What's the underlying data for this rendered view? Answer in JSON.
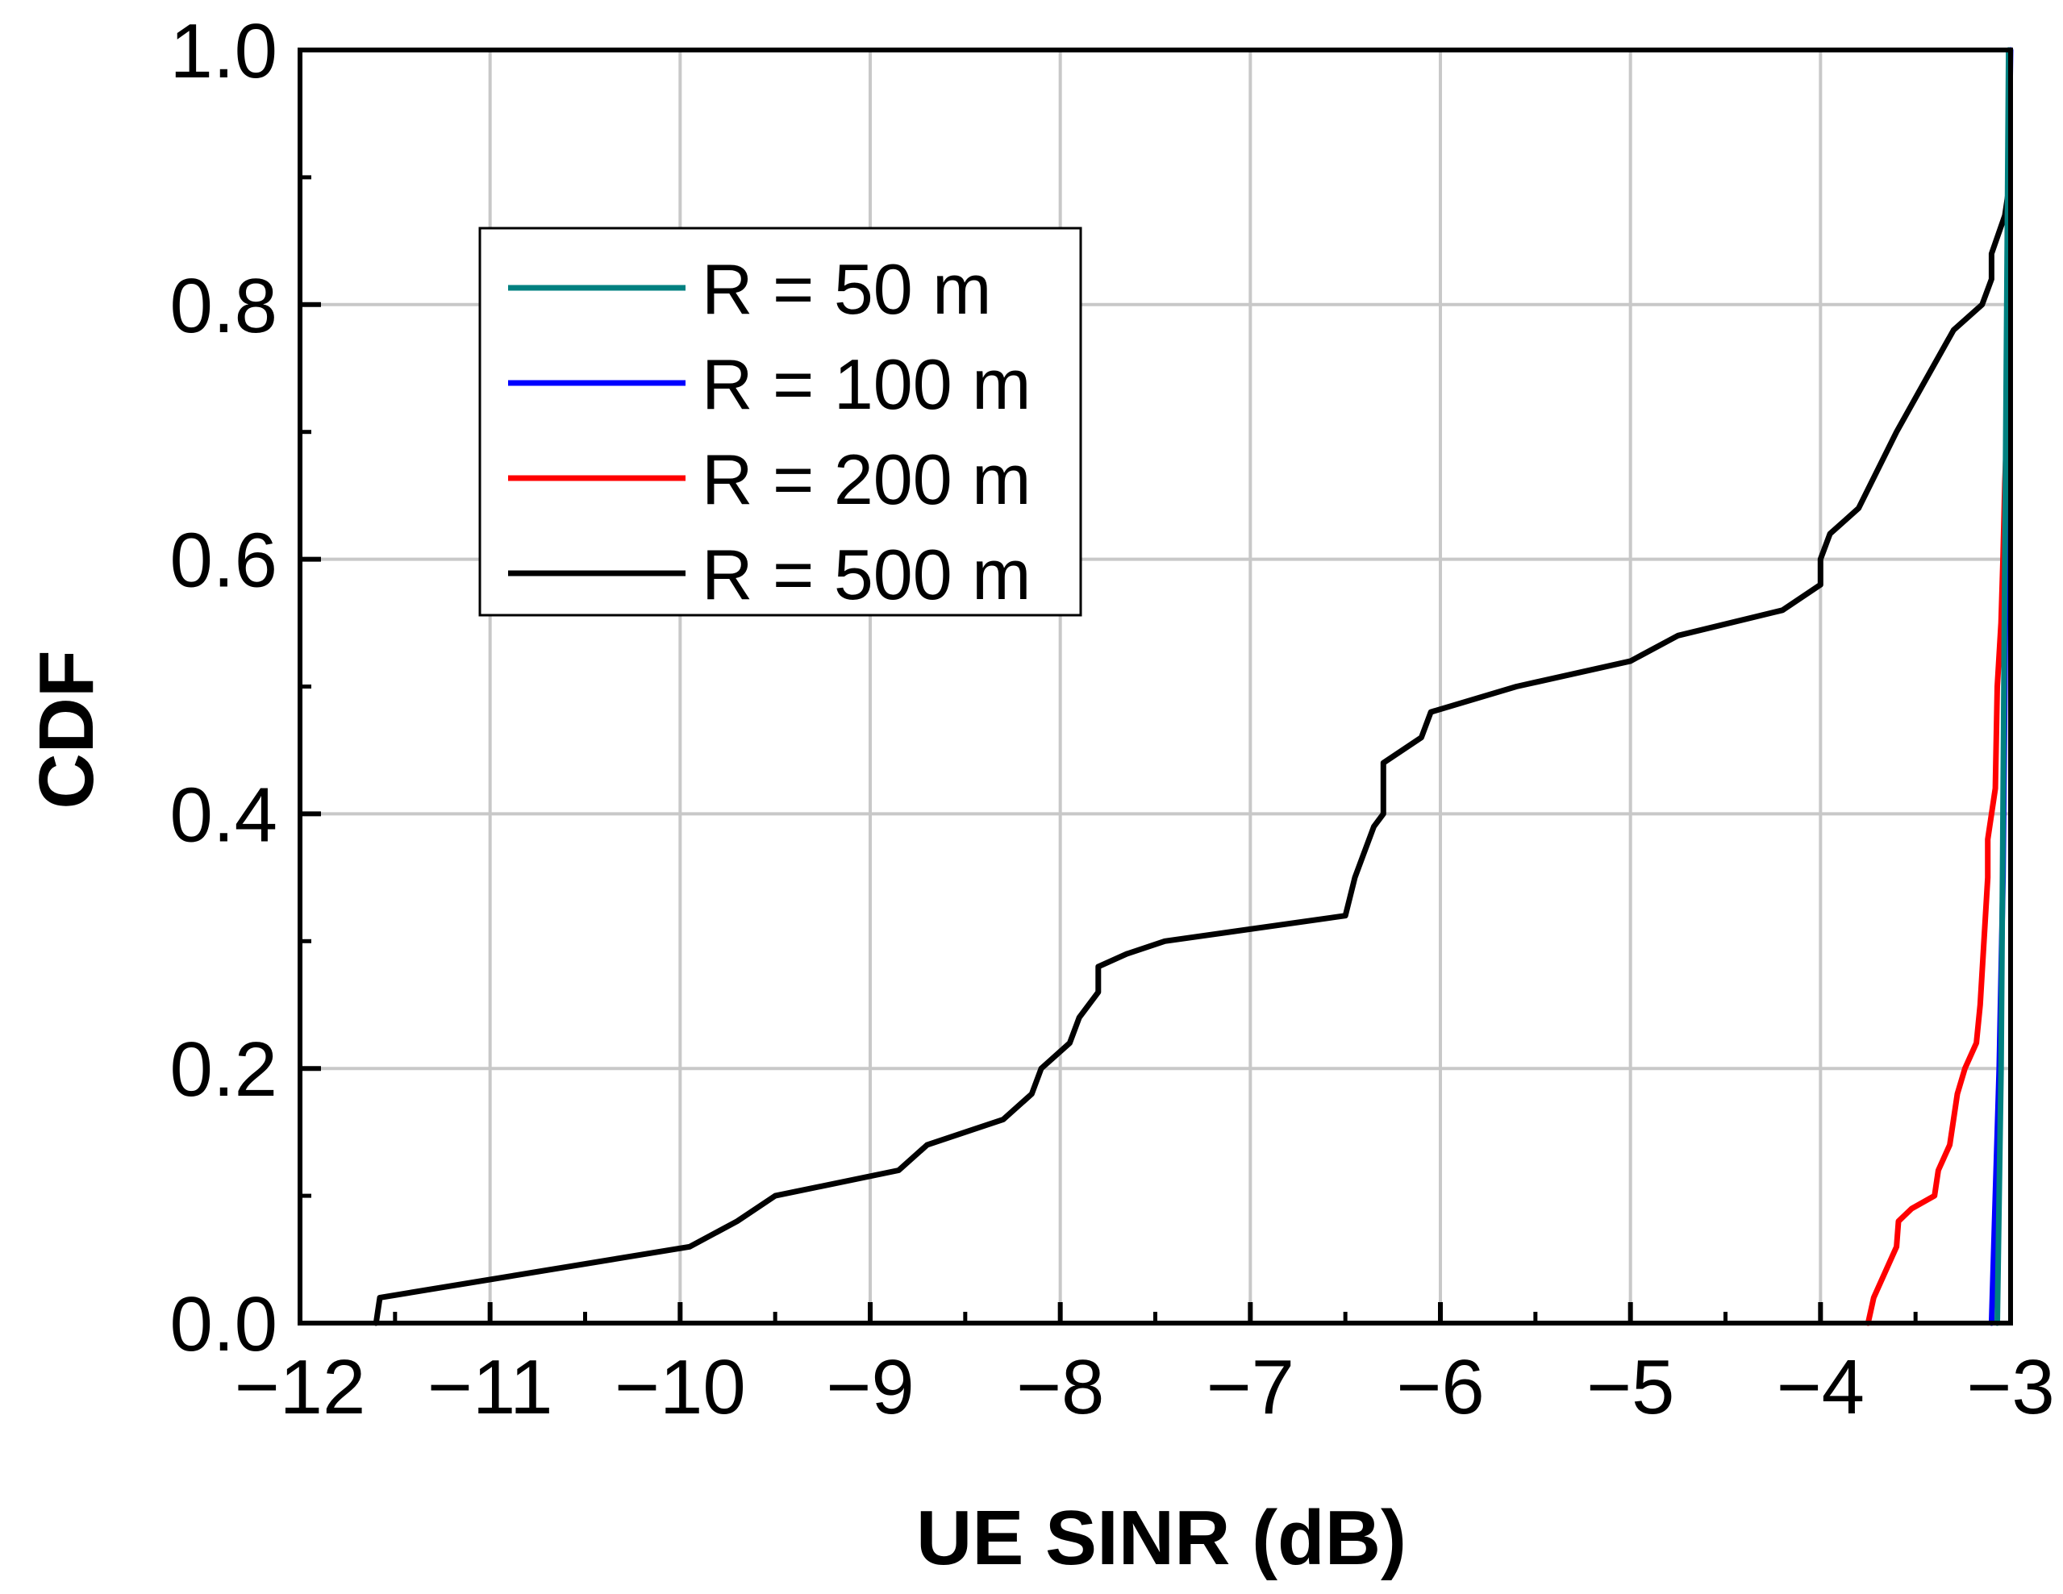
{
  "chart_data": {
    "type": "line",
    "title": "",
    "xlabel": "UE SINR (dB)",
    "ylabel": "CDF",
    "xlim": [
      -12,
      -3
    ],
    "ylim": [
      0,
      1
    ],
    "x_ticks": [
      -12,
      -11,
      -10,
      -9,
      -8,
      -7,
      -6,
      -5,
      -4,
      -3
    ],
    "x_tick_labels": [
      "−12",
      "−11",
      "−10",
      "−9",
      "−8",
      "−7",
      "−6",
      "−5",
      "−4",
      "−3"
    ],
    "y_ticks": [
      0,
      0.2,
      0.4,
      0.6,
      0.8,
      1.0
    ],
    "y_tick_labels": [
      "0.0",
      "0.2",
      "0.4",
      "0.6",
      "0.8",
      "1.0"
    ],
    "grid": true,
    "legend_position": "upper-left",
    "series": [
      {
        "name": "R = 50 m",
        "color": "#008080",
        "points": [
          [
            -3.07,
            0.0
          ],
          [
            -3.05,
            0.2
          ],
          [
            -3.04,
            0.4
          ],
          [
            -3.03,
            0.6
          ],
          [
            -3.02,
            0.8
          ],
          [
            -3.01,
            1.0
          ]
        ]
      },
      {
        "name": "R = 100 m",
        "color": "#0000ff",
        "points": [
          [
            -3.1,
            0.0
          ],
          [
            -3.08,
            0.1
          ],
          [
            -3.06,
            0.2
          ],
          [
            -3.04,
            0.35
          ],
          [
            -3.03,
            0.5
          ],
          [
            -3.02,
            0.7
          ],
          [
            -3.01,
            0.9
          ],
          [
            -3.0,
            1.0
          ]
        ]
      },
      {
        "name": "R = 200 m",
        "color": "#ff0000",
        "points": [
          [
            -3.75,
            0.0
          ],
          [
            -3.72,
            0.02
          ],
          [
            -3.6,
            0.06
          ],
          [
            -3.59,
            0.08
          ],
          [
            -3.52,
            0.09
          ],
          [
            -3.4,
            0.1
          ],
          [
            -3.38,
            0.12
          ],
          [
            -3.32,
            0.14
          ],
          [
            -3.28,
            0.18
          ],
          [
            -3.24,
            0.2
          ],
          [
            -3.18,
            0.22
          ],
          [
            -3.16,
            0.25
          ],
          [
            -3.14,
            0.3
          ],
          [
            -3.12,
            0.35
          ],
          [
            -3.12,
            0.38
          ],
          [
            -3.1,
            0.4
          ],
          [
            -3.08,
            0.42
          ],
          [
            -3.07,
            0.5
          ],
          [
            -3.05,
            0.55
          ],
          [
            -3.04,
            0.6
          ],
          [
            -3.03,
            0.66
          ],
          [
            -3.02,
            0.7
          ]
        ]
      },
      {
        "name": "R = 500 m",
        "color": "#000000",
        "points": [
          [
            -11.6,
            0.0
          ],
          [
            -11.58,
            0.02
          ],
          [
            -9.95,
            0.06
          ],
          [
            -9.7,
            0.08
          ],
          [
            -9.5,
            0.1
          ],
          [
            -8.85,
            0.12
          ],
          [
            -8.7,
            0.14
          ],
          [
            -8.3,
            0.16
          ],
          [
            -8.15,
            0.18
          ],
          [
            -8.1,
            0.2
          ],
          [
            -7.95,
            0.22
          ],
          [
            -7.9,
            0.24
          ],
          [
            -7.8,
            0.26
          ],
          [
            -7.8,
            0.28
          ],
          [
            -7.65,
            0.29
          ],
          [
            -7.45,
            0.3
          ],
          [
            -6.5,
            0.32
          ],
          [
            -6.45,
            0.35
          ],
          [
            -6.4,
            0.37
          ],
          [
            -6.35,
            0.39
          ],
          [
            -6.3,
            0.4
          ],
          [
            -6.3,
            0.44
          ],
          [
            -6.1,
            0.46
          ],
          [
            -6.05,
            0.48
          ],
          [
            -5.6,
            0.5
          ],
          [
            -5.0,
            0.52
          ],
          [
            -4.75,
            0.54
          ],
          [
            -4.2,
            0.56
          ],
          [
            -4.0,
            0.58
          ],
          [
            -4.0,
            0.6
          ],
          [
            -3.95,
            0.62
          ],
          [
            -3.8,
            0.64
          ],
          [
            -3.6,
            0.7
          ],
          [
            -3.45,
            0.74
          ],
          [
            -3.3,
            0.78
          ],
          [
            -3.15,
            0.8
          ],
          [
            -3.1,
            0.82
          ],
          [
            -3.1,
            0.84
          ],
          [
            -3.03,
            0.87
          ],
          [
            -3.01,
            0.89
          ]
        ]
      }
    ]
  }
}
